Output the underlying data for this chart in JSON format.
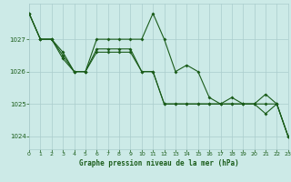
{
  "title": "Graphe pression niveau de la mer (hPa)",
  "bg_color": "#cceae7",
  "grid_color": "#aacccc",
  "line_color": "#1a5c1a",
  "hours": [
    0,
    1,
    2,
    3,
    4,
    5,
    6,
    7,
    8,
    9,
    10,
    11,
    12,
    13,
    14,
    15,
    16,
    17,
    18,
    19,
    20,
    21,
    22,
    23
  ],
  "series1": [
    1027.8,
    1027.0,
    1027.0,
    1026.6,
    1026.0,
    1026.0,
    1027.0,
    1027.0,
    1027.0,
    1027.0,
    1027.0,
    1027.8,
    1027.0,
    1026.0,
    1026.2,
    1026.0,
    1025.2,
    1025.0,
    1025.2,
    1025.0,
    1025.0,
    1025.3,
    1025.0,
    1024.0
  ],
  "series2": [
    1027.8,
    1027.0,
    1027.0,
    1026.5,
    1026.0,
    1026.0,
    1026.7,
    1026.7,
    1026.7,
    1026.7,
    1026.0,
    1026.0,
    1025.0,
    1025.0,
    1025.0,
    1025.0,
    1025.0,
    1025.0,
    1025.0,
    1025.0,
    1025.0,
    1025.0,
    1025.0,
    1024.0
  ],
  "series3": [
    1027.8,
    1027.0,
    1027.0,
    1026.4,
    1026.0,
    1026.0,
    1026.6,
    1026.6,
    1026.6,
    1026.6,
    1026.0,
    1026.0,
    1025.0,
    1025.0,
    1025.0,
    1025.0,
    1025.0,
    1025.0,
    1025.0,
    1025.0,
    1025.0,
    1024.7,
    1025.0,
    1024.0
  ],
  "ylim": [
    1023.6,
    1028.1
  ],
  "yticks": [
    1024,
    1025,
    1026,
    1027
  ],
  "xlim": [
    0,
    23
  ],
  "xticks": [
    0,
    1,
    2,
    3,
    4,
    5,
    6,
    7,
    8,
    9,
    10,
    11,
    12,
    13,
    14,
    15,
    16,
    17,
    18,
    19,
    20,
    21,
    22,
    23
  ]
}
